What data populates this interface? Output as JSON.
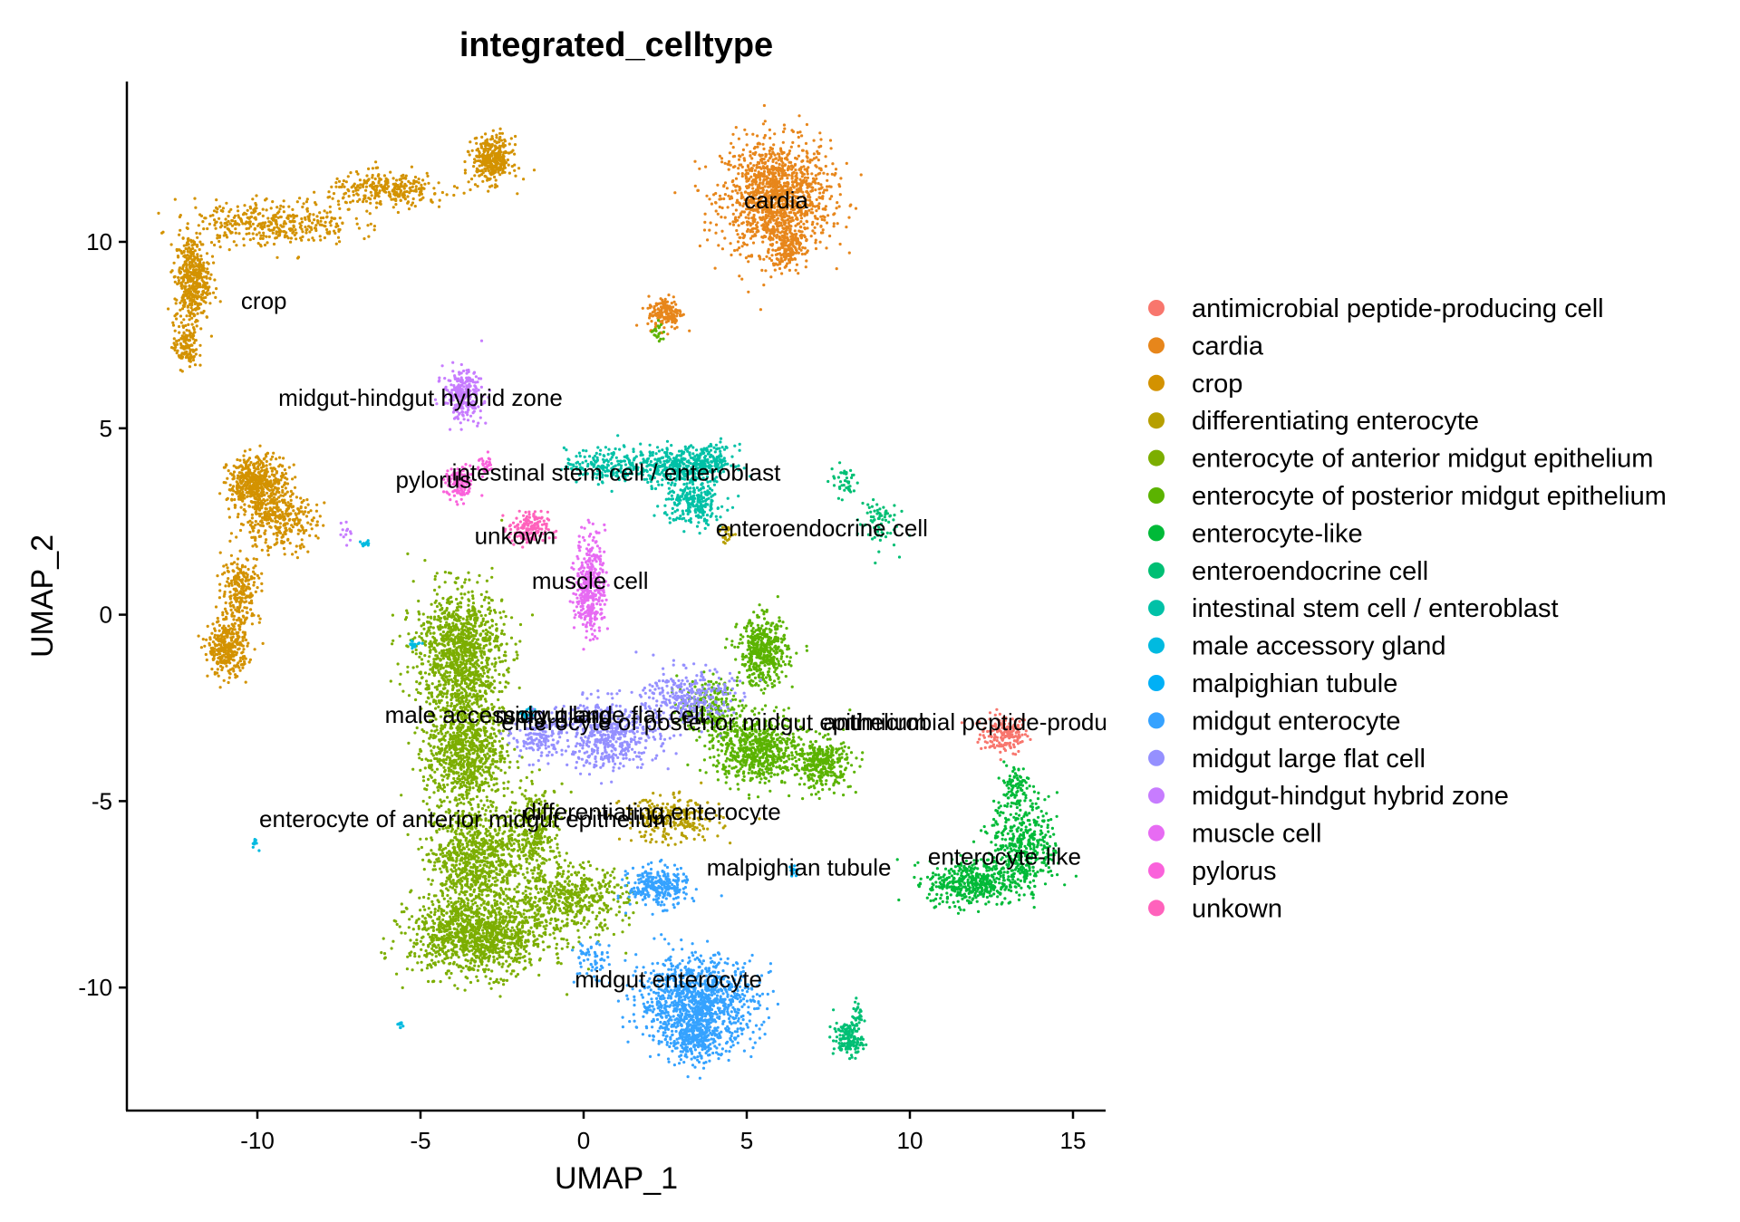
{
  "chart_data": {
    "type": "scatter",
    "title": "integrated_celltype",
    "xlabel": "UMAP_1",
    "ylabel": "UMAP_2",
    "xlim": [
      -14,
      16
    ],
    "ylim": [
      -13.3,
      14.3
    ],
    "x_ticks": [
      -10,
      -5,
      0,
      5,
      10,
      15
    ],
    "y_ticks": [
      -10,
      -5,
      0,
      5,
      10
    ],
    "x_tick_labels": [
      "-10",
      "-5",
      "0",
      "5",
      "10",
      "15"
    ],
    "y_tick_labels": [
      "-10",
      "-5",
      "0",
      "5",
      "10"
    ],
    "grid": false,
    "legend_position": "right",
    "series": [
      {
        "name": "antimicrobial peptide-producing cell",
        "color": "#F8766D",
        "label": "antimicrobial peptide-producing cell",
        "label_pos": [
          13.0,
          -3.1
        ],
        "clusters": [
          {
            "cx": 12.9,
            "cy": -3.2,
            "sx": 0.5,
            "sy": 0.35,
            "n": 180
          }
        ]
      },
      {
        "name": "cardia",
        "color": "#E7861B",
        "label": "cardia",
        "label_pos": [
          5.9,
          10.9
        ],
        "clusters": [
          {
            "cx": 5.9,
            "cy": 11.2,
            "sx": 1.1,
            "sy": 1.0,
            "n": 1300
          },
          {
            "cx": 6.2,
            "cy": 9.8,
            "sx": 0.3,
            "sy": 0.4,
            "n": 150
          },
          {
            "cx": 2.5,
            "cy": 8.1,
            "sx": 0.35,
            "sy": 0.3,
            "n": 160
          }
        ]
      },
      {
        "name": "crop",
        "color": "#D39200",
        "label": "crop",
        "label_pos": [
          -9.8,
          8.2
        ],
        "clusters": [
          {
            "cx": -12.0,
            "cy": 9.0,
            "sx": 0.35,
            "sy": 0.8,
            "n": 450
          },
          {
            "cx": -12.2,
            "cy": 7.2,
            "sx": 0.25,
            "sy": 0.4,
            "n": 120
          },
          {
            "cx": -9.5,
            "cy": 10.5,
            "sx": 1.6,
            "sy": 0.4,
            "n": 380
          },
          {
            "cx": -6.0,
            "cy": 11.4,
            "sx": 1.2,
            "sy": 0.3,
            "n": 300
          },
          {
            "cx": -2.8,
            "cy": 12.2,
            "sx": 0.4,
            "sy": 0.4,
            "n": 350
          },
          {
            "cx": -10.0,
            "cy": 3.5,
            "sx": 0.6,
            "sy": 0.5,
            "n": 520
          },
          {
            "cx": -9.4,
            "cy": 2.5,
            "sx": 0.8,
            "sy": 0.5,
            "n": 300
          },
          {
            "cx": -10.5,
            "cy": 0.7,
            "sx": 0.4,
            "sy": 0.6,
            "n": 220
          },
          {
            "cx": -10.9,
            "cy": -0.9,
            "sx": 0.4,
            "sy": 0.5,
            "n": 340
          }
        ]
      },
      {
        "name": "differentiating enterocyte",
        "color": "#B79F00",
        "label": "differentiating enterocyte",
        "label_pos": [
          2.1,
          -5.5
        ],
        "clusters": [
          {
            "cx": 2.7,
            "cy": -5.5,
            "sx": 1.0,
            "sy": 0.4,
            "n": 260
          },
          {
            "cx": 4.4,
            "cy": 2.2,
            "sx": 0.15,
            "sy": 0.2,
            "n": 20
          }
        ]
      },
      {
        "name": "enterocyte of anterior midgut epithelium",
        "color": "#7CAE00",
        "label": "enterocyte of anterior midgut epithelium",
        "label_pos": [
          -3.6,
          -5.7
        ],
        "clusters": [
          {
            "cx": -3.8,
            "cy": -1.0,
            "sx": 0.9,
            "sy": 1.1,
            "n": 1100
          },
          {
            "cx": -3.6,
            "cy": -3.6,
            "sx": 0.8,
            "sy": 1.1,
            "n": 900
          },
          {
            "cx": -3.4,
            "cy": -6.5,
            "sx": 0.9,
            "sy": 0.9,
            "n": 800
          },
          {
            "cx": -3.2,
            "cy": -8.6,
            "sx": 1.4,
            "sy": 0.7,
            "n": 1200
          },
          {
            "cx": -0.5,
            "cy": -7.6,
            "sx": 1.2,
            "sy": 0.6,
            "n": 500
          },
          {
            "cx": -1.5,
            "cy": -5.8,
            "sx": 0.6,
            "sy": 0.8,
            "n": 300
          }
        ]
      },
      {
        "name": "enterocyte of posterior midgut epithelium",
        "color": "#5BB300",
        "label": "enterocyte of posterior midgut epithelium",
        "label_pos": [
          4.0,
          -3.1
        ],
        "clusters": [
          {
            "cx": 5.5,
            "cy": -1.0,
            "sx": 0.5,
            "sy": 0.6,
            "n": 450
          },
          {
            "cx": 5.3,
            "cy": -3.6,
            "sx": 0.9,
            "sy": 0.6,
            "n": 650
          },
          {
            "cx": 7.3,
            "cy": -4.0,
            "sx": 0.6,
            "sy": 0.45,
            "n": 320
          },
          {
            "cx": 3.8,
            "cy": -2.5,
            "sx": 0.6,
            "sy": 0.5,
            "n": 220
          },
          {
            "cx": 2.3,
            "cy": 7.6,
            "sx": 0.12,
            "sy": 0.2,
            "n": 20
          }
        ]
      },
      {
        "name": "enterocyte-like",
        "color": "#00BA38",
        "label": "enterocyte-like",
        "label_pos": [
          12.9,
          -6.7
        ],
        "clusters": [
          {
            "cx": 13.5,
            "cy": -6.2,
            "sx": 0.7,
            "sy": 0.8,
            "n": 420
          },
          {
            "cx": 11.9,
            "cy": -7.2,
            "sx": 0.9,
            "sy": 0.4,
            "n": 430
          },
          {
            "cx": 13.2,
            "cy": -4.6,
            "sx": 0.3,
            "sy": 0.4,
            "n": 90
          }
        ]
      },
      {
        "name": "enteroendocrine cell",
        "color": "#00BF74",
        "label": "enteroendocrine cell",
        "label_pos": [
          7.3,
          2.1
        ],
        "clusters": [
          {
            "cx": 8.1,
            "cy": -11.4,
            "sx": 0.3,
            "sy": 0.3,
            "n": 140
          },
          {
            "cx": 8.4,
            "cy": -10.8,
            "sx": 0.1,
            "sy": 0.3,
            "n": 30
          },
          {
            "cx": 9.0,
            "cy": 2.5,
            "sx": 0.4,
            "sy": 0.5,
            "n": 70
          },
          {
            "cx": 8.0,
            "cy": 3.6,
            "sx": 0.3,
            "sy": 0.3,
            "n": 40
          }
        ]
      },
      {
        "name": "intestinal stem cell / enteroblast",
        "color": "#00C1A7",
        "label": "intestinal stem cell / enteroblast",
        "label_pos": [
          1.0,
          3.6
        ],
        "clusters": [
          {
            "cx": 0.8,
            "cy": 4.0,
            "sx": 0.9,
            "sy": 0.3,
            "n": 220
          },
          {
            "cx": 2.8,
            "cy": 4.0,
            "sx": 0.7,
            "sy": 0.35,
            "n": 300
          },
          {
            "cx": 3.4,
            "cy": 3.0,
            "sx": 0.6,
            "sy": 0.4,
            "n": 250
          },
          {
            "cx": 3.9,
            "cy": 4.1,
            "sx": 0.5,
            "sy": 0.3,
            "n": 160
          }
        ]
      },
      {
        "name": "male accessory gland",
        "color": "#00BAE0",
        "label": "male accessory gland",
        "label_pos": [
          -2.6,
          -2.9
        ],
        "clusters": [
          {
            "cx": -1.7,
            "cy": -2.7,
            "sx": 0.15,
            "sy": 0.15,
            "n": 25
          },
          {
            "cx": -5.2,
            "cy": -0.8,
            "sx": 0.15,
            "sy": 0.08,
            "n": 15
          },
          {
            "cx": -10.1,
            "cy": -6.1,
            "sx": 0.08,
            "sy": 0.1,
            "n": 10
          },
          {
            "cx": -5.6,
            "cy": -11.0,
            "sx": 0.08,
            "sy": 0.06,
            "n": 10
          },
          {
            "cx": -6.7,
            "cy": 1.9,
            "sx": 0.12,
            "sy": 0.05,
            "n": 12
          }
        ]
      },
      {
        "name": "malpighian tubule",
        "color": "#00B0F6",
        "label": "malpighian tubule",
        "label_pos": [
          6.6,
          -7.0
        ],
        "clusters": [
          {
            "cx": 6.4,
            "cy": -6.9,
            "sx": 0.12,
            "sy": 0.12,
            "n": 12
          }
        ]
      },
      {
        "name": "midgut enterocyte",
        "color": "#35A2FF",
        "label": "midgut enterocyte",
        "label_pos": [
          2.6,
          -10.0
        ],
        "clusters": [
          {
            "cx": 2.3,
            "cy": -7.3,
            "sx": 0.6,
            "sy": 0.35,
            "n": 280
          },
          {
            "cx": 3.5,
            "cy": -10.4,
            "sx": 1.2,
            "sy": 0.8,
            "n": 1100
          },
          {
            "cx": 3.4,
            "cy": -11.4,
            "sx": 0.5,
            "sy": 0.4,
            "n": 220
          },
          {
            "cx": 0.2,
            "cy": -9.3,
            "sx": 0.4,
            "sy": 0.4,
            "n": 60
          }
        ]
      },
      {
        "name": "midgut large flat cell",
        "color": "#9590FF",
        "label": "midgut large flat cell",
        "label_pos": [
          0.5,
          -2.9
        ],
        "clusters": [
          {
            "cx": 0.8,
            "cy": -3.2,
            "sx": 1.0,
            "sy": 0.6,
            "n": 500
          },
          {
            "cx": 3.2,
            "cy": -2.2,
            "sx": 0.9,
            "sy": 0.5,
            "n": 300
          },
          {
            "cx": -1.4,
            "cy": -3.3,
            "sx": 0.5,
            "sy": 0.4,
            "n": 150
          }
        ]
      },
      {
        "name": "midgut-hindgut hybrid zone",
        "color": "#C77CFF",
        "label": "midgut-hindgut hybrid zone",
        "label_pos": [
          -5.0,
          5.6
        ],
        "clusters": [
          {
            "cx": -3.7,
            "cy": 5.9,
            "sx": 0.4,
            "sy": 0.45,
            "n": 260
          },
          {
            "cx": -7.3,
            "cy": 2.2,
            "sx": 0.15,
            "sy": 0.2,
            "n": 12
          }
        ]
      },
      {
        "name": "muscle cell",
        "color": "#E76BF3",
        "label": "muscle cell",
        "label_pos": [
          0.2,
          0.7
        ],
        "clusters": [
          {
            "cx": 0.2,
            "cy": 0.8,
            "sx": 0.3,
            "sy": 0.9,
            "n": 380
          }
        ]
      },
      {
        "name": "pylorus",
        "color": "#FA62DB",
        "label": "pylorus",
        "label_pos": [
          -4.6,
          3.4
        ],
        "clusters": [
          {
            "cx": -3.8,
            "cy": 3.5,
            "sx": 0.3,
            "sy": 0.3,
            "n": 120
          },
          {
            "cx": -3.0,
            "cy": 4.0,
            "sx": 0.15,
            "sy": 0.2,
            "n": 30
          }
        ]
      },
      {
        "name": "unkown",
        "color": "#FF62BC",
        "label": "unkown",
        "label_pos": [
          -2.1,
          1.9
        ],
        "clusters": [
          {
            "cx": -1.7,
            "cy": 2.3,
            "sx": 0.4,
            "sy": 0.3,
            "n": 160
          }
        ]
      }
    ]
  }
}
